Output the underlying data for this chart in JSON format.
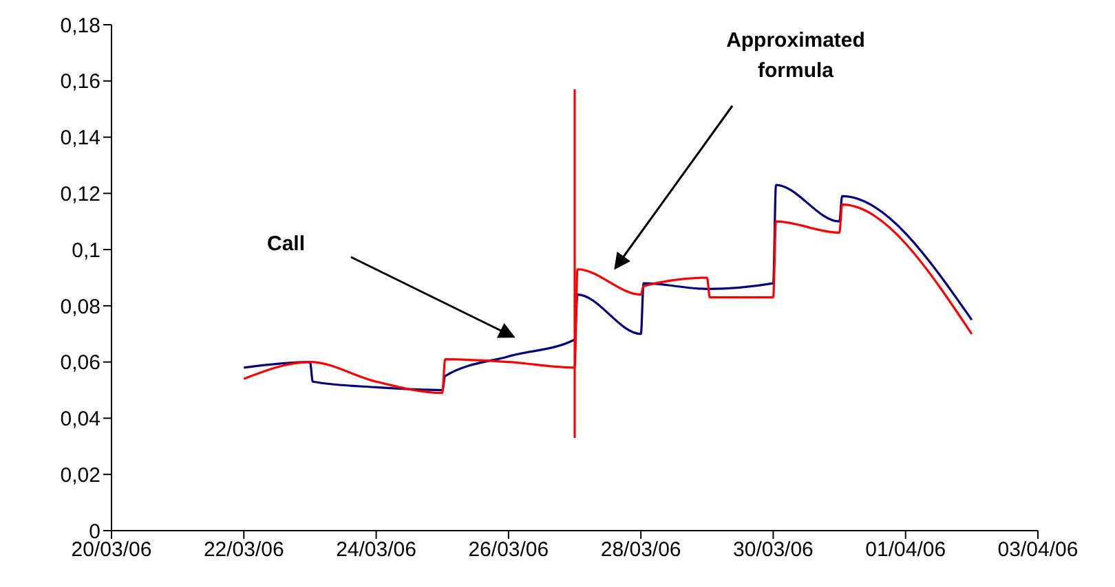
{
  "chart_data": {
    "type": "line",
    "xlim": [
      "--03-20",
      "--04-03"
    ],
    "xticks": [
      {
        "value": "--03-20",
        "label": "20/03/06"
      },
      {
        "value": "--03-22",
        "label": "22/03/06"
      },
      {
        "value": "--03-24",
        "label": "24/03/06"
      },
      {
        "value": "--03-26",
        "label": "26/03/06"
      },
      {
        "value": "--03-28",
        "label": "28/03/06"
      },
      {
        "value": "--03-30",
        "label": "30/03/06"
      },
      {
        "value": "--04-01",
        "label": "01/04/06"
      },
      {
        "value": "--04-03",
        "label": "03/04/06"
      }
    ],
    "ylim": [
      0,
      0.18
    ],
    "yticks": [
      {
        "value": 0,
        "label": "0"
      },
      {
        "value": 0.02,
        "label": "0,02"
      },
      {
        "value": 0.04,
        "label": "0,04"
      },
      {
        "value": 0.06,
        "label": "0,06"
      },
      {
        "value": 0.08,
        "label": "0,08"
      },
      {
        "value": 0.1,
        "label": "0,1"
      },
      {
        "value": 0.12,
        "label": "0,12"
      },
      {
        "value": 0.14,
        "label": "0,14"
      },
      {
        "value": 0.16,
        "label": "0,16"
      },
      {
        "value": 0.18,
        "label": "0,18"
      }
    ],
    "marker": "none",
    "line_style": "solid",
    "series": [
      {
        "color": "#000080",
        "x": [
          "--03-22",
          "--03-23",
          "--03-23T01:00",
          "--03-24",
          "--03-25",
          "--03-25T01:00",
          "--03-26",
          "--03-27",
          "--03-27T01:00",
          "--03-28",
          "--03-28T01:00",
          "--03-29",
          "--03-30",
          "--03-30T01:00",
          "--03-31",
          "--03-31T01:00",
          "--04-02"
        ],
        "values": [
          0.058,
          0.06,
          0.053,
          0.051,
          0.05,
          0.055,
          0.062,
          0.068,
          0.084,
          0.07,
          0.088,
          0.086,
          0.088,
          0.123,
          0.11,
          0.119,
          0.075
        ]
      },
      {
        "color": "#ff0000",
        "x": [
          "--03-22",
          "--03-23",
          "--03-24",
          "--03-25",
          "--03-25T01:00",
          "--03-26",
          "--03-27",
          "--03-27T01:00",
          "--03-28",
          "--03-28T01:00",
          "--03-29",
          "--03-29T01:00",
          "--03-30",
          "--03-30T01:00",
          "--03-31",
          "--03-31T01:00",
          "--04-02"
        ],
        "values": [
          0.054,
          0.06,
          0.053,
          0.049,
          0.061,
          0.06,
          0.058,
          0.093,
          0.084,
          0.087,
          0.09,
          0.083,
          0.083,
          0.11,
          0.106,
          0.116,
          0.07
        ]
      },
      {
        "color": "#ff0000",
        "x": [
          "--03-27",
          "--03-27"
        ],
        "values": [
          0.033,
          0.157
        ]
      }
    ],
    "annotations": [
      "Call",
      "Approximated\nformula"
    ]
  }
}
